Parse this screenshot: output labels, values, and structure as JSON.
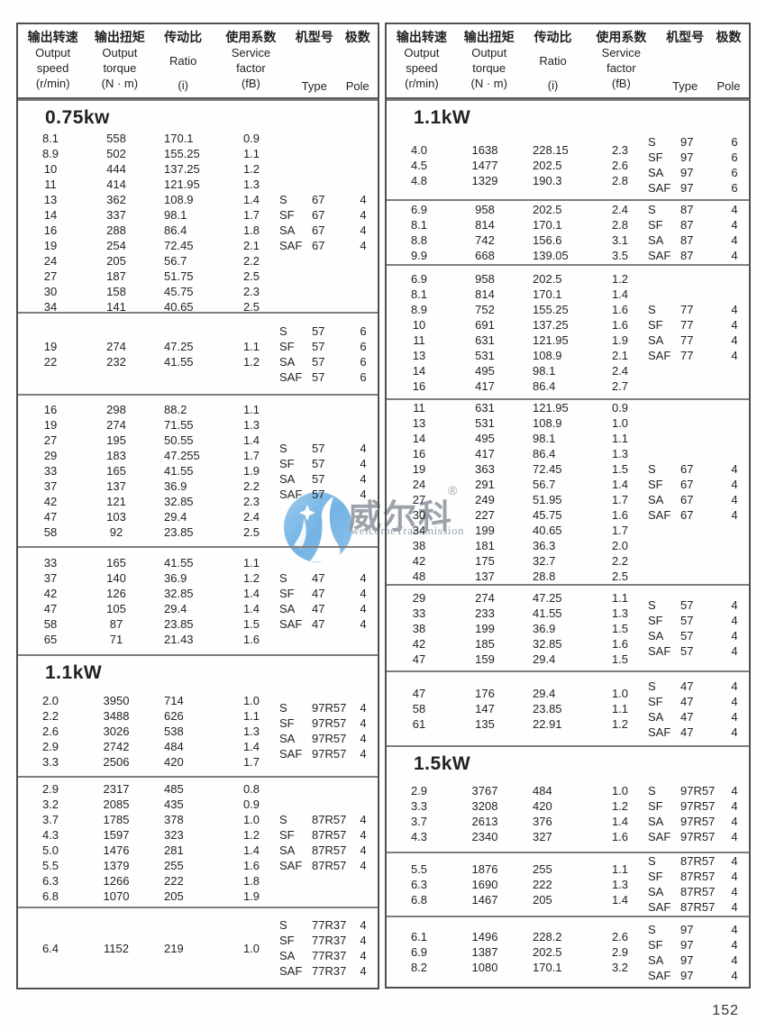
{
  "page_number": "152",
  "watermark": {
    "brand_zh": "威尔科",
    "registered_mark": "®",
    "brand_en": "welcomeTransmission",
    "logo_icon": "blue-circle-swoosh-star-logo",
    "logo_color": "#74b3e4"
  },
  "header": {
    "columns": [
      {
        "zh": "输出转速",
        "en": [
          "Output",
          "speed"
        ],
        "unit": "(r/min)"
      },
      {
        "zh": "输出扭矩",
        "en": [
          "Output",
          "torque"
        ],
        "unit": "(N · m)"
      },
      {
        "zh": "传动比",
        "en": [
          "Ratio"
        ],
        "unit": "(i)"
      },
      {
        "zh": "使用系数",
        "en": [
          "Service",
          "factor"
        ],
        "unit": "(fB)"
      },
      {
        "zh": "机型号",
        "en": [
          "Type"
        ],
        "unit": ""
      },
      {
        "zh": "极数",
        "en": [
          "Pole"
        ],
        "unit": ""
      }
    ]
  },
  "tables": [
    {
      "id": "left-table",
      "sections": [
        {
          "title": "0.75kw",
          "rows": [
            [
              "8.1",
              "558",
              "170.1",
              "0.9"
            ],
            [
              "8.9",
              "502",
              "155.25",
              "1.1"
            ],
            [
              "10",
              "444",
              "137.25",
              "1.2"
            ],
            [
              "11",
              "414",
              "121.95",
              "1.3"
            ],
            [
              "13",
              "362",
              "108.9",
              "1.4"
            ],
            [
              "14",
              "337",
              "98.1",
              "1.7"
            ],
            [
              "16",
              "288",
              "86.4",
              "1.8"
            ],
            [
              "19",
              "254",
              "72.45",
              "2.1"
            ],
            [
              "24",
              "205",
              "56.7",
              "2.2"
            ],
            [
              "27",
              "187",
              "51.75",
              "2.5"
            ],
            [
              "30",
              "158",
              "45.75",
              "2.3"
            ],
            [
              "34",
              "141",
              "40.65",
              "2.5"
            ]
          ],
          "types": [
            {
              "prefix": "S",
              "model": "67",
              "pole": "4"
            },
            {
              "prefix": "SF",
              "model": "67",
              "pole": "4"
            },
            {
              "prefix": "SA",
              "model": "67",
              "pole": "4"
            },
            {
              "prefix": "SAF",
              "model": "67",
              "pole": "4"
            }
          ]
        },
        {
          "rows": [
            [
              "19",
              "274",
              "47.25",
              "1.1"
            ],
            [
              "22",
              "232",
              "41.55",
              "1.2"
            ]
          ],
          "types": [
            {
              "prefix": "S",
              "model": "57",
              "pole": "6"
            },
            {
              "prefix": "SF",
              "model": "57",
              "pole": "6"
            },
            {
              "prefix": "SA",
              "model": "57",
              "pole": "6"
            },
            {
              "prefix": "SAF",
              "model": "57",
              "pole": "6"
            }
          ]
        },
        {
          "rows": [
            [
              "16",
              "298",
              "88.2",
              "1.1"
            ],
            [
              "19",
              "274",
              "71.55",
              "1.3"
            ],
            [
              "27",
              "195",
              "50.55",
              "1.4"
            ],
            [
              "29",
              "183",
              "47.255",
              "1.7"
            ],
            [
              "33",
              "165",
              "41.55",
              "1.9"
            ],
            [
              "37",
              "137",
              "36.9",
              "2.2"
            ],
            [
              "42",
              "121",
              "32.85",
              "2.3"
            ],
            [
              "47",
              "103",
              "29.4",
              "2.4"
            ],
            [
              "58",
              "92",
              "23.85",
              "2.5"
            ]
          ],
          "types": [
            {
              "prefix": "S",
              "model": "57",
              "pole": "4"
            },
            {
              "prefix": "SF",
              "model": "57",
              "pole": "4"
            },
            {
              "prefix": "SA",
              "model": "57",
              "pole": "4"
            },
            {
              "prefix": "SAF",
              "model": "57",
              "pole": "4"
            }
          ]
        },
        {
          "rows": [
            [
              "33",
              "165",
              "41.55",
              "1.1"
            ],
            [
              "37",
              "140",
              "36.9",
              "1.2"
            ],
            [
              "42",
              "126",
              "32.85",
              "1.4"
            ],
            [
              "47",
              "105",
              "29.4",
              "1.4"
            ],
            [
              "58",
              "87",
              "23.85",
              "1.5"
            ],
            [
              "65",
              "71",
              "21.43",
              "1.6"
            ]
          ],
          "types": [
            {
              "prefix": "S",
              "model": "47",
              "pole": "4"
            },
            {
              "prefix": "SF",
              "model": "47",
              "pole": "4"
            },
            {
              "prefix": "SA",
              "model": "47",
              "pole": "4"
            },
            {
              "prefix": "SAF",
              "model": "47",
              "pole": "4"
            }
          ]
        },
        {
          "title": "1.1kW",
          "rows": [
            [
              "2.0",
              "3950",
              "714",
              "1.0"
            ],
            [
              "2.2",
              "3488",
              "626",
              "1.1"
            ],
            [
              "2.6",
              "3026",
              "538",
              "1.3"
            ],
            [
              "2.9",
              "2742",
              "484",
              "1.4"
            ],
            [
              "3.3",
              "2506",
              "420",
              "1.7"
            ]
          ],
          "types": [
            {
              "prefix": "S",
              "model": "97R57",
              "pole": "4"
            },
            {
              "prefix": "SF",
              "model": "97R57",
              "pole": "4"
            },
            {
              "prefix": "SA",
              "model": "97R57",
              "pole": "4"
            },
            {
              "prefix": "SAF",
              "model": "97R57",
              "pole": "4"
            }
          ]
        },
        {
          "rows": [
            [
              "2.9",
              "2317",
              "485",
              "0.8"
            ],
            [
              "3.2",
              "2085",
              "435",
              "0.9"
            ],
            [
              "3.7",
              "1785",
              "378",
              "1.0"
            ],
            [
              "4.3",
              "1597",
              "323",
              "1.2"
            ],
            [
              "5.0",
              "1476",
              "281",
              "1.4"
            ],
            [
              "5.5",
              "1379",
              "255",
              "1.6"
            ],
            [
              "6.3",
              "1266",
              "222",
              "1.8"
            ],
            [
              "6.8",
              "1070",
              "205",
              "1.9"
            ]
          ],
          "types": [
            {
              "prefix": "S",
              "model": "87R57",
              "pole": "4"
            },
            {
              "prefix": "SF",
              "model": "87R57",
              "pole": "4"
            },
            {
              "prefix": "SA",
              "model": "87R57",
              "pole": "4"
            },
            {
              "prefix": "SAF",
              "model": "87R57",
              "pole": "4"
            }
          ]
        },
        {
          "rows": [
            [
              "6.4",
              "1152",
              "219",
              "1.0"
            ]
          ],
          "types": [
            {
              "prefix": "S",
              "model": "77R37",
              "pole": "4"
            },
            {
              "prefix": "SF",
              "model": "77R37",
              "pole": "4"
            },
            {
              "prefix": "SA",
              "model": "77R37",
              "pole": "4"
            },
            {
              "prefix": "SAF",
              "model": "77R37",
              "pole": "4"
            }
          ]
        }
      ]
    },
    {
      "id": "right-table",
      "sections": [
        {
          "title": "1.1kW",
          "rows": [
            [
              "4.0",
              "1638",
              "228.15",
              "2.3"
            ],
            [
              "4.5",
              "1477",
              "202.5",
              "2.6"
            ],
            [
              "4.8",
              "1329",
              "190.3",
              "2.8"
            ]
          ],
          "types": [
            {
              "prefix": "S",
              "model": "97",
              "pole": "6"
            },
            {
              "prefix": "SF",
              "model": "97",
              "pole": "6"
            },
            {
              "prefix": "SA",
              "model": "97",
              "pole": "6"
            },
            {
              "prefix": "SAF",
              "model": "97",
              "pole": "6"
            }
          ]
        },
        {
          "rows": [
            [
              "6.9",
              "958",
              "202.5",
              "2.4"
            ],
            [
              "8.1",
              "814",
              "170.1",
              "2.8"
            ],
            [
              "8.8",
              "742",
              "156.6",
              "3.1"
            ],
            [
              "9.9",
              "668",
              "139.05",
              "3.5"
            ]
          ],
          "types": [
            {
              "prefix": "S",
              "model": "87",
              "pole": "4"
            },
            {
              "prefix": "SF",
              "model": "87",
              "pole": "4"
            },
            {
              "prefix": "SA",
              "model": "87",
              "pole": "4"
            },
            {
              "prefix": "SAF",
              "model": "87",
              "pole": "4"
            }
          ]
        },
        {
          "rows": [
            [
              "6.9",
              "958",
              "202.5",
              "1.2"
            ],
            [
              "8.1",
              "814",
              "170.1",
              "1.4"
            ],
            [
              "8.9",
              "752",
              "155.25",
              "1.6"
            ],
            [
              "10",
              "691",
              "137.25",
              "1.6"
            ],
            [
              "11",
              "631",
              "121.95",
              "1.9"
            ],
            [
              "13",
              "531",
              "108.9",
              "2.1"
            ],
            [
              "14",
              "495",
              "98.1",
              "2.4"
            ],
            [
              "16",
              "417",
              "86.4",
              "2.7"
            ]
          ],
          "types": [
            {
              "prefix": "S",
              "model": "77",
              "pole": "4"
            },
            {
              "prefix": "SF",
              "model": "77",
              "pole": "4"
            },
            {
              "prefix": "SA",
              "model": "77",
              "pole": "4"
            },
            {
              "prefix": "SAF",
              "model": "77",
              "pole": "4"
            }
          ]
        },
        {
          "rows": [
            [
              "11",
              "631",
              "121.95",
              "0.9"
            ],
            [
              "13",
              "531",
              "108.9",
              "1.0"
            ],
            [
              "14",
              "495",
              "98.1",
              "1.1"
            ],
            [
              "16",
              "417",
              "86.4",
              "1.3"
            ],
            [
              "19",
              "363",
              "72.45",
              "1.5"
            ],
            [
              "24",
              "291",
              "56.7",
              "1.4"
            ],
            [
              "27",
              "249",
              "51.95",
              "1.7"
            ],
            [
              "30",
              "227",
              "45.75",
              "1.6"
            ],
            [
              "34",
              "199",
              "40.65",
              "1.7"
            ],
            [
              "38",
              "181",
              "36.3",
              "2.0"
            ],
            [
              "42",
              "175",
              "32.7",
              "2.2"
            ],
            [
              "48",
              "137",
              "28.8",
              "2.5"
            ]
          ],
          "types": [
            {
              "prefix": "S",
              "model": "67",
              "pole": "4"
            },
            {
              "prefix": "SF",
              "model": "67",
              "pole": "4"
            },
            {
              "prefix": "SA",
              "model": "67",
              "pole": "4"
            },
            {
              "prefix": "SAF",
              "model": "67",
              "pole": "4"
            }
          ]
        },
        {
          "rows": [
            [
              "29",
              "274",
              "47.25",
              "1.1"
            ],
            [
              "33",
              "233",
              "41.55",
              "1.3"
            ],
            [
              "38",
              "199",
              "36.9",
              "1.5"
            ],
            [
              "42",
              "185",
              "32.85",
              "1.6"
            ],
            [
              "47",
              "159",
              "29.4",
              "1.5"
            ]
          ],
          "types": [
            {
              "prefix": "S",
              "model": "57",
              "pole": "4"
            },
            {
              "prefix": "SF",
              "model": "57",
              "pole": "4"
            },
            {
              "prefix": "SA",
              "model": "57",
              "pole": "4"
            },
            {
              "prefix": "SAF",
              "model": "57",
              "pole": "4"
            }
          ]
        },
        {
          "rows": [
            [
              "47",
              "176",
              "29.4",
              "1.0"
            ],
            [
              "58",
              "147",
              "23.85",
              "1.1"
            ],
            [
              "61",
              "135",
              "22.91",
              "1.2"
            ]
          ],
          "types": [
            {
              "prefix": "S",
              "model": "47",
              "pole": "4"
            },
            {
              "prefix": "SF",
              "model": "47",
              "pole": "4"
            },
            {
              "prefix": "SA",
              "model": "47",
              "pole": "4"
            },
            {
              "prefix": "SAF",
              "model": "47",
              "pole": "4"
            }
          ]
        },
        {
          "title": "1.5kW",
          "rows": [
            [
              "2.9",
              "3767",
              "484",
              "1.0"
            ],
            [
              "3.3",
              "3208",
              "420",
              "1.2"
            ],
            [
              "3.7",
              "2613",
              "376",
              "1.4"
            ],
            [
              "4.3",
              "2340",
              "327",
              "1.6"
            ]
          ],
          "types": [
            {
              "prefix": "S",
              "model": "97R57",
              "pole": "4"
            },
            {
              "prefix": "SF",
              "model": "97R57",
              "pole": "4"
            },
            {
              "prefix": "SA",
              "model": "97R57",
              "pole": "4"
            },
            {
              "prefix": "SAF",
              "model": "97R57",
              "pole": "4"
            }
          ]
        },
        {
          "rows": [
            [
              "5.5",
              "1876",
              "255",
              "1.1"
            ],
            [
              "6.3",
              "1690",
              "222",
              "1.3"
            ],
            [
              "6.8",
              "1467",
              "205",
              "1.4"
            ]
          ],
          "types": [
            {
              "prefix": "S",
              "model": "87R57",
              "pole": "4"
            },
            {
              "prefix": "SF",
              "model": "87R57",
              "pole": "4"
            },
            {
              "prefix": "SA",
              "model": "87R57",
              "pole": "4"
            },
            {
              "prefix": "SAF",
              "model": "87R57",
              "pole": "4"
            }
          ]
        },
        {
          "rows": [
            [
              "6.1",
              "1496",
              "228.2",
              "2.6"
            ],
            [
              "6.9",
              "1387",
              "202.5",
              "2.9"
            ],
            [
              "8.2",
              "1080",
              "170.1",
              "3.2"
            ]
          ],
          "types": [
            {
              "prefix": "S",
              "model": "97",
              "pole": "4"
            },
            {
              "prefix": "SF",
              "model": "97",
              "pole": "4"
            },
            {
              "prefix": "SA",
              "model": "97",
              "pole": "4"
            },
            {
              "prefix": "SAF",
              "model": "97",
              "pole": "4"
            }
          ]
        }
      ]
    }
  ]
}
